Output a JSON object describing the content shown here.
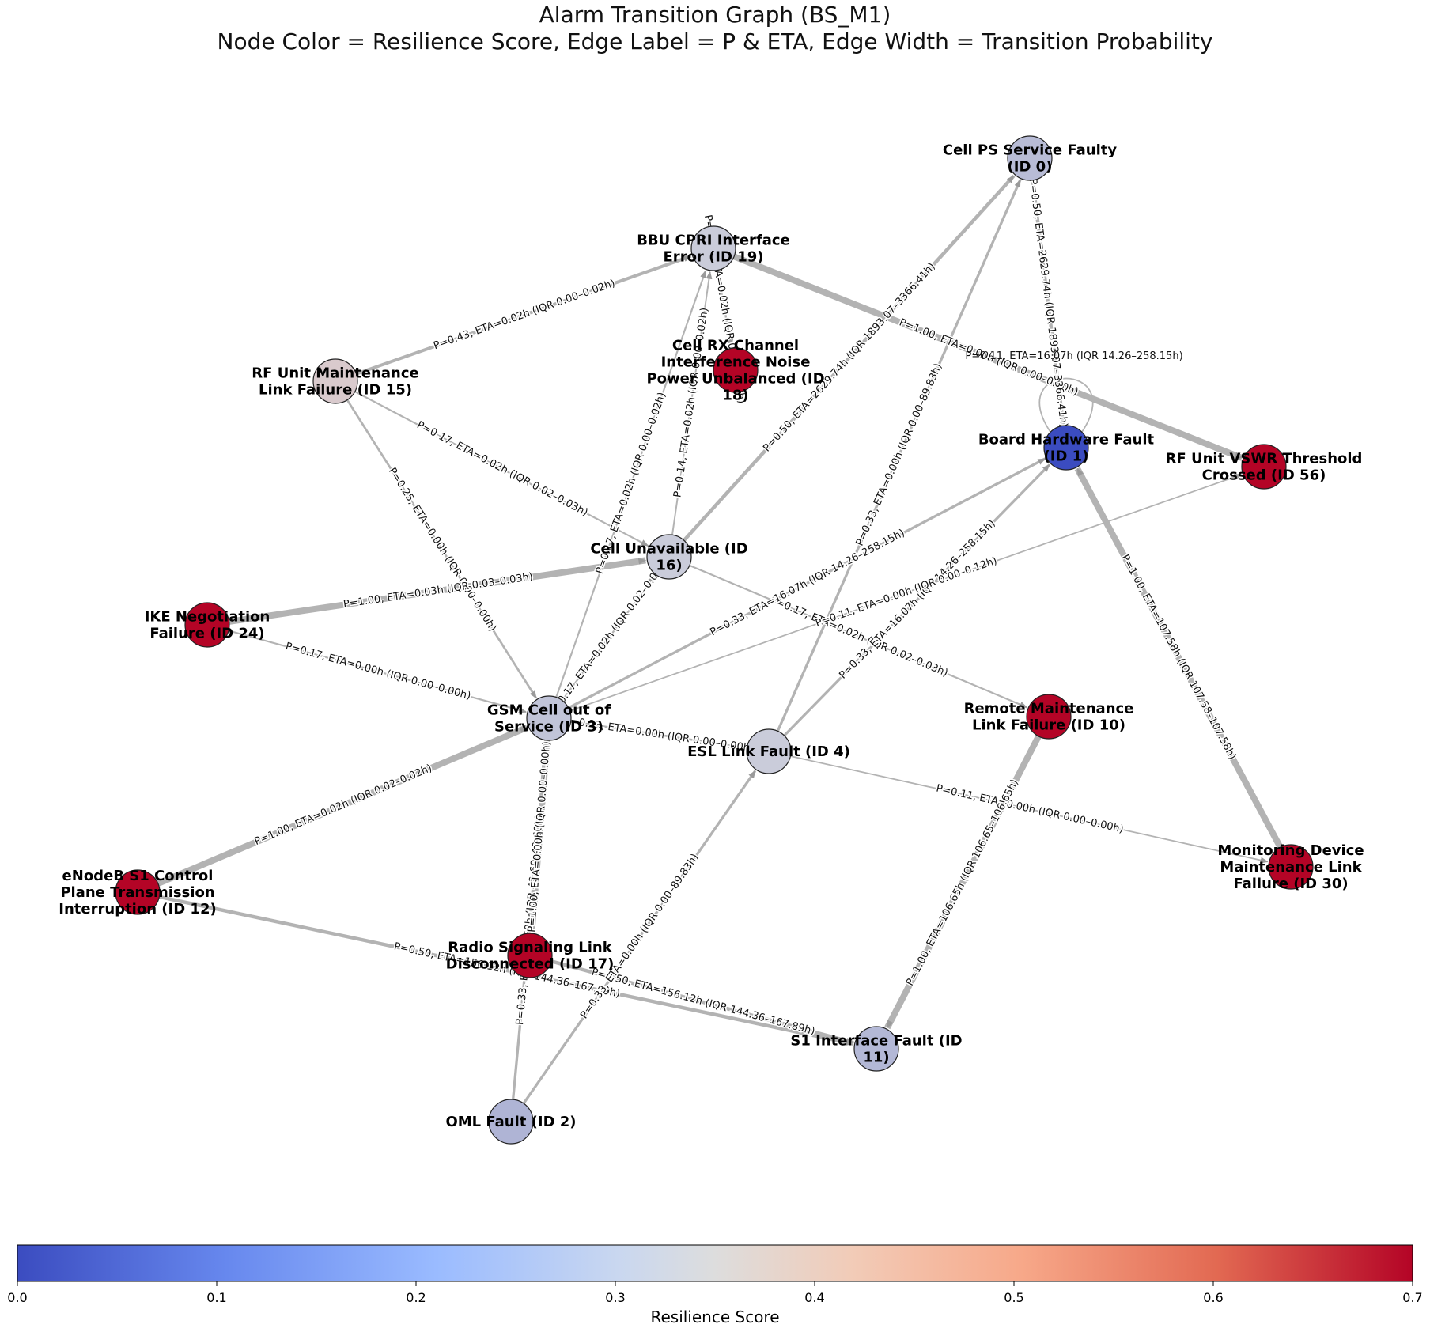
{
  "title": {
    "line1": "Alarm Transition Graph (BS_M1)",
    "line2": "Node Color = Resilience Score, Edge Label = P & ETA, Edge Width = Transition Probability"
  },
  "colors": {
    "min": "#3b4cc0",
    "mid": "#dddddd",
    "max": "#b40426",
    "edge": "#b3b3b3"
  },
  "nodes": [
    {
      "id": "n0",
      "label": [
        "Cell PS Service Faulty",
        "(ID 0)"
      ],
      "score": 0.27
    },
    {
      "id": "n19",
      "label": [
        "BBU CPRI Interface",
        "Error (ID 19)"
      ],
      "score": 0.31
    },
    {
      "id": "n18",
      "label": [
        "Cell RX Channel",
        "Interference Noise",
        "Power Unbalanced (ID",
        "18)"
      ],
      "score": 0.7
    },
    {
      "id": "n15",
      "label": [
        "RF Unit Maintenance",
        "Link Failure (ID 15)"
      ],
      "score": 0.38
    },
    {
      "id": "n1",
      "label": [
        "Board Hardware Fault",
        "(ID 1)"
      ],
      "score": 0.0
    },
    {
      "id": "n56",
      "label": [
        "RF Unit VSWR Threshold",
        "Crossed (ID 56)"
      ],
      "score": 0.7
    },
    {
      "id": "n16",
      "label": [
        "Cell Unavailable (ID",
        "16)"
      ],
      "score": 0.31
    },
    {
      "id": "n24",
      "label": [
        "IKE Negotiation",
        "Failure (ID 24)"
      ],
      "score": 0.7
    },
    {
      "id": "n3",
      "label": [
        "GSM Cell out of",
        "Service (ID 3)"
      ],
      "score": 0.29
    },
    {
      "id": "n10",
      "label": [
        "Remote Maintenance",
        "Link Failure (ID 10)"
      ],
      "score": 0.7
    },
    {
      "id": "n4",
      "label": [
        "ESL Link Fault (ID 4)"
      ],
      "score": 0.31
    },
    {
      "id": "n30",
      "label": [
        "Monitoring Device",
        "Maintenance Link",
        "Failure (ID 30)"
      ],
      "score": 0.7
    },
    {
      "id": "n12",
      "label": [
        "eNodeB S1 Control",
        "Plane Transmission",
        "Interruption (ID 12)"
      ],
      "score": 0.7
    },
    {
      "id": "n17",
      "label": [
        "Radio Signaling Link",
        "Disconnected (ID 17)"
      ],
      "score": 0.7
    },
    {
      "id": "n11",
      "label": [
        "S1 Interface Fault (ID",
        "11)"
      ],
      "score": 0.26
    },
    {
      "id": "n2",
      "label": [
        "OML Fault (ID 2)"
      ],
      "score": 0.25
    }
  ],
  "edges": [
    {
      "from": "n19",
      "to": "n56",
      "p": 1.0,
      "label": "P=1.00, ETA=0.00h (IQR 0.00–0.00h)"
    },
    {
      "from": "n15",
      "to": "n19",
      "p": 0.43,
      "label": "P=0.43, ETA=0.02h (IQR 0.00–0.02h)"
    },
    {
      "from": "n15",
      "to": "n16",
      "p": 0.17,
      "label": "P=0.17, ETA=0.02h (IQR 0.02–0.03h)"
    },
    {
      "from": "n15",
      "to": "n3",
      "p": 0.25,
      "label": "P=0.25, ETA=0.00h (IQR 0.00–0.00h)"
    },
    {
      "from": "n19",
      "to": "n18",
      "p": 0.2,
      "label": "P=0.20, ETA=0.02h (IQR 0.00–0.02h)"
    },
    {
      "from": "n16",
      "to": "n19",
      "p": 0.14,
      "label": "P=0.14, ETA=0.02h (IQR 0.00–0.02h)"
    },
    {
      "from": "n3",
      "to": "n19",
      "p": 0.17,
      "label": "P=0.17, ETA=0.02h (IQR 0.00–0.02h)"
    },
    {
      "from": "n16",
      "to": "n0",
      "p": 0.5,
      "label": "P=0.50, ETA=2629.74h (IQR 1893.07–3366.41h)"
    },
    {
      "from": "n0",
      "to": "n1",
      "p": 0.5,
      "label": "P=0.50, ETA=2629.74h (IQR 1893.07–3366.41h)"
    },
    {
      "from": "n1",
      "to": "n1",
      "p": 0.11,
      "label": "P=0.11, ETA=16.07h (IQR 14.26–258.15h)"
    },
    {
      "from": "n4",
      "to": "n0",
      "p": 0.33,
      "label": "P=0.33, ETA=0.00h (IQR 0.00–89.83h)"
    },
    {
      "from": "n24",
      "to": "n16",
      "p": 1.0,
      "label": "P=1.00, ETA=0.03h (IQR 0.03–0.03h)"
    },
    {
      "from": "n24",
      "to": "n3",
      "p": 0.17,
      "label": "P=0.17, ETA=0.00h (IQR 0.00–0.00h)"
    },
    {
      "from": "n3",
      "to": "n16",
      "p": 0.17,
      "label": "P=0.17, ETA=0.02h (IQR 0.02–0.03h)"
    },
    {
      "from": "n16",
      "to": "n10",
      "p": 0.17,
      "label": "P=0.17, ETA=0.02h (IQR 0.02–0.03h)"
    },
    {
      "from": "n3",
      "to": "n1",
      "p": 0.33,
      "label": "P=0.33, ETA=16.07h (IQR 14.26–258.15h)"
    },
    {
      "from": "n4",
      "to": "n1",
      "p": 0.33,
      "label": "P=0.33, ETA=16.07h (IQR 14.26–258.15h)"
    },
    {
      "from": "n3",
      "to": "n56",
      "p": 0.11,
      "label": "P=0.11, ETA=0.00h (IQR 0.00–0.12h)"
    },
    {
      "from": "n3",
      "to": "n4",
      "p": 0.23,
      "label": "P=0.23, ETA=0.00h (IQR 0.00–0.00h)"
    },
    {
      "from": "n12",
      "to": "n3",
      "p": 1.0,
      "label": "P=1.00, ETA=0.02h (IQR 0.02–0.02h)"
    },
    {
      "from": "n4",
      "to": "n30",
      "p": 0.11,
      "label": "P=0.11, ETA=0.00h (IQR 0.00–0.00h)"
    },
    {
      "from": "n30",
      "to": "n1",
      "p": 1.0,
      "label": "P=1.00, ETA=107.58h (IQR 107.58–107.58h)"
    },
    {
      "from": "n10",
      "to": "n11",
      "p": 1.0,
      "label": "P=1.00, ETA=106.65h (IQR 106.65–106.65h)"
    },
    {
      "from": "n12",
      "to": "n11",
      "p": 0.5,
      "label": "P=0.50, ETA=156.12h (IQR 144.36–167.89h)"
    },
    {
      "from": "n17",
      "to": "n11",
      "p": 0.5,
      "label": "P=0.50, ETA=156.12h (IQR 144.36–167.89h)"
    },
    {
      "from": "n2",
      "to": "n3",
      "p": 0.33,
      "label": "P=0.33, ETA=49.60h (IQR 49.60–49.60h)"
    },
    {
      "from": "n3",
      "to": "n17",
      "p": 1.0,
      "label": "P=1.00, ETA=0.00h (IQR 0.00–0.00h)"
    },
    {
      "from": "n2",
      "to": "n4",
      "p": 0.33,
      "label": "P=0.33, ETA=0.00h (IQR 0.00–89.83h)"
    }
  ],
  "colorbar": {
    "title": "Resilience Score",
    "min": 0.0,
    "max": 0.7,
    "ticks": [
      "0.0",
      "0.1",
      "0.2",
      "0.3",
      "0.4",
      "0.5",
      "0.6",
      "0.7"
    ]
  }
}
